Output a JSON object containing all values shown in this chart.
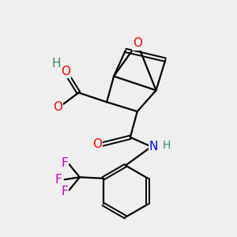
{
  "bg_color": "#efefef",
  "atom_colors": {
    "O": "#ff0000",
    "N": "#0000ff",
    "F": "#cc00cc",
    "C": "#000000",
    "H": "#2e8b57"
  },
  "bond_color": "#000000",
  "lw_single": 1.6,
  "lw_double": 1.4,
  "fontsize": 11
}
